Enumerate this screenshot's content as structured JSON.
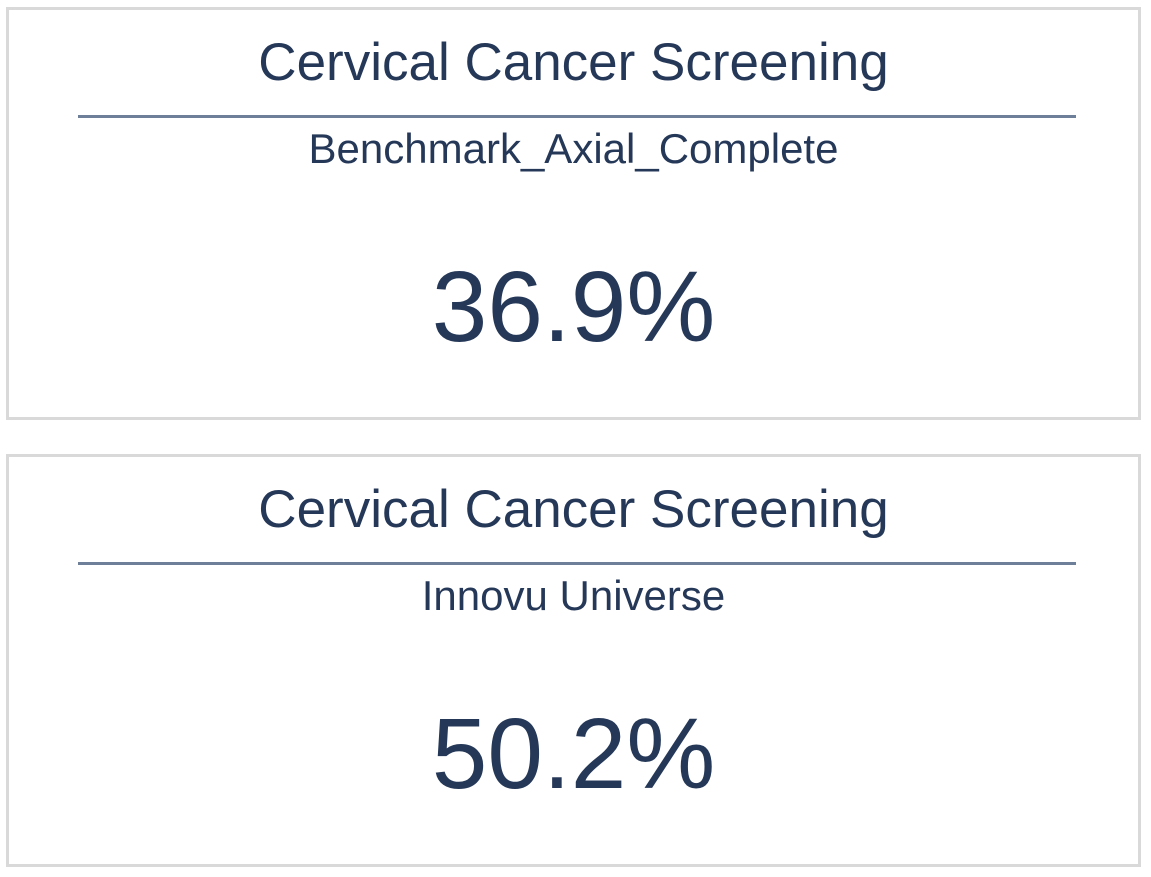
{
  "cards": [
    {
      "title": "Cervical Cancer Screening",
      "subtitle": "Benchmark_Axial_Complete",
      "value": "36.9%"
    },
    {
      "title": "Cervical Cancer Screening",
      "subtitle": "Innovu Universe",
      "value": "50.2%"
    }
  ],
  "colors": {
    "text": "#253858",
    "divider": "#6e7f99",
    "border": "#d9d9d9"
  }
}
